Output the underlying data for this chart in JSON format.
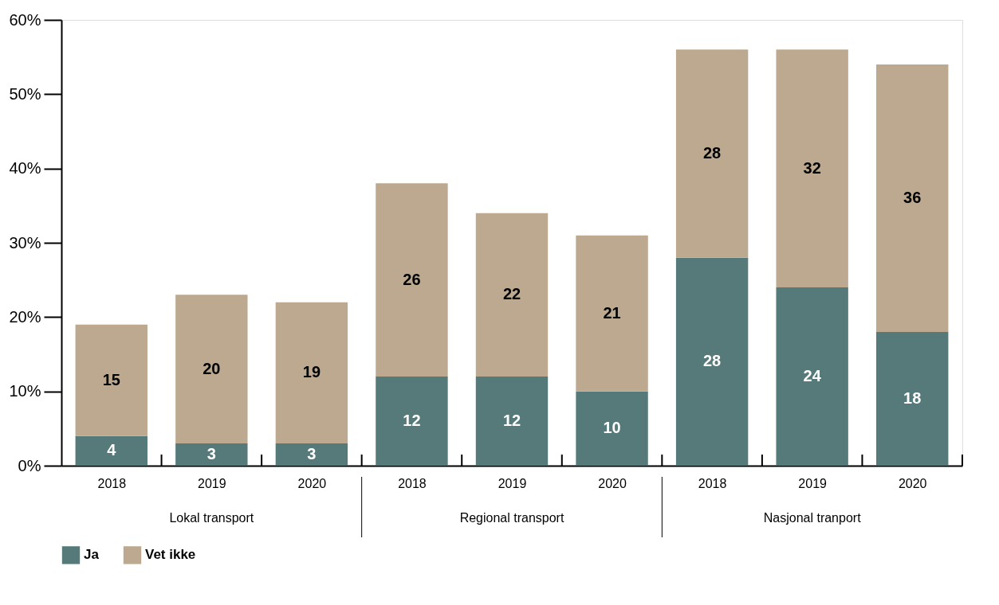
{
  "chart_data": {
    "type": "bar",
    "stacked": true,
    "categories": [
      "2018",
      "2019",
      "2020",
      "2018",
      "2019",
      "2020",
      "2018",
      "2019",
      "2020"
    ],
    "series": [
      {
        "name": "Ja",
        "color": "#557a79",
        "values": [
          4,
          3,
          3,
          12,
          12,
          10,
          28,
          24,
          18
        ]
      },
      {
        "name": "Vet ikke",
        "color": "#bda98f",
        "values": [
          15,
          20,
          19,
          26,
          22,
          21,
          28,
          32,
          36
        ]
      }
    ],
    "ylim": [
      0,
      60
    ],
    "yticks": [
      {
        "value": 0,
        "label": "0%"
      },
      {
        "value": 10,
        "label": "10%"
      },
      {
        "value": 20,
        "label": "20%"
      },
      {
        "value": 30,
        "label": "30%"
      },
      {
        "value": 40,
        "label": "40%"
      },
      {
        "value": 50,
        "label": "50%"
      },
      {
        "value": 60,
        "label": "60%"
      }
    ],
    "annotations": [
      "Lokal transport",
      "Regional transport",
      "Nasjonal tranport"
    ],
    "data_labels": true,
    "grid": false,
    "legend": "bottom left"
  }
}
